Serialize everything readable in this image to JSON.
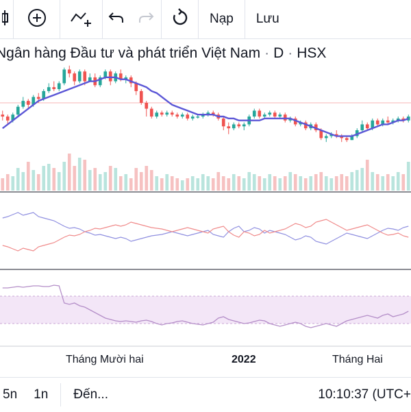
{
  "toolbar": {
    "candle_icon": "candlestick-icon",
    "add_icon": "plus-circle-icon",
    "indicator_icon": "indicator-icon",
    "undo_icon": "undo-icon",
    "redo_icon": "redo-icon",
    "reload_icon": "reload-icon",
    "load_label": "Nạp",
    "save_label": "Lưu"
  },
  "symbol": {
    "name": "Ngân hàng Đầu tư và phát triển Việt Nam",
    "interval": "D",
    "exchange": "HSX"
  },
  "xaxis": {
    "labels": [
      "Tháng Mười hai",
      "2022",
      "Tháng Hai"
    ]
  },
  "bottom_bar": {
    "range_5n": "5n",
    "range_1n": "1n",
    "goto_label": "Đến...",
    "clock": "10:10:37 (UTC+"
  },
  "colors": {
    "up": "#26a69a",
    "down": "#ef5350",
    "ma": "#5b56d6",
    "osc_blue": "#8f8fe0",
    "osc_red": "#f08a8a",
    "rsi": "#b48ec8",
    "rsi_band": "#f3e6f7"
  },
  "chart_data": {
    "type": "candlestick",
    "candles": [
      [
        63,
        62,
        65,
        60
      ],
      [
        62,
        60,
        63,
        58
      ],
      [
        60,
        63,
        64,
        59
      ],
      [
        63,
        67,
        68,
        62
      ],
      [
        67,
        70,
        72,
        66
      ],
      [
        70,
        68,
        71,
        66
      ],
      [
        68,
        72,
        73,
        67
      ],
      [
        72,
        71,
        74,
        69
      ],
      [
        71,
        75,
        76,
        70
      ],
      [
        75,
        77,
        79,
        74
      ],
      [
        77,
        76,
        80,
        75
      ],
      [
        76,
        79,
        80,
        75
      ],
      [
        79,
        86,
        87,
        78
      ],
      [
        86,
        84,
        88,
        82
      ],
      [
        84,
        80,
        85,
        78
      ],
      [
        80,
        85,
        86,
        79
      ],
      [
        85,
        80,
        86,
        78
      ],
      [
        80,
        82,
        84,
        80
      ],
      [
        82,
        78,
        84,
        77
      ],
      [
        78,
        82,
        83,
        77
      ],
      [
        82,
        85,
        86,
        81
      ],
      [
        85,
        80,
        86,
        78
      ],
      [
        80,
        84,
        85,
        79
      ],
      [
        84,
        81,
        86,
        80
      ],
      [
        81,
        82,
        83,
        79
      ],
      [
        82,
        79,
        83,
        77
      ],
      [
        79,
        75,
        80,
        73
      ],
      [
        75,
        69,
        76,
        68
      ],
      [
        69,
        66,
        70,
        62
      ],
      [
        66,
        62,
        67,
        61
      ],
      [
        62,
        64,
        65,
        61
      ],
      [
        64,
        63,
        65,
        62
      ],
      [
        63,
        64,
        65,
        62
      ],
      [
        64,
        63,
        65,
        62
      ],
      [
        63,
        62,
        64,
        61
      ],
      [
        62,
        63,
        64,
        61
      ],
      [
        63,
        61,
        64,
        60
      ],
      [
        61,
        62,
        63,
        60
      ],
      [
        62,
        62,
        63,
        61
      ],
      [
        62,
        63,
        64,
        61
      ],
      [
        63,
        64,
        65,
        62
      ],
      [
        64,
        63,
        65,
        62
      ],
      [
        63,
        61,
        64,
        60
      ],
      [
        61,
        57,
        62,
        55
      ],
      [
        57,
        56,
        59,
        53
      ],
      [
        56,
        58,
        59,
        55
      ],
      [
        58,
        57,
        59,
        56
      ],
      [
        57,
        58,
        59,
        55
      ],
      [
        58,
        62,
        63,
        57
      ],
      [
        62,
        65,
        66,
        61
      ],
      [
        65,
        62,
        66,
        61
      ],
      [
        62,
        63,
        64,
        61
      ],
      [
        63,
        64,
        65,
        62
      ],
      [
        64,
        62,
        65,
        61
      ],
      [
        62,
        63,
        64,
        61
      ],
      [
        63,
        60,
        64,
        59
      ],
      [
        60,
        61,
        62,
        59
      ],
      [
        61,
        58,
        62,
        57
      ],
      [
        58,
        59,
        60,
        57
      ],
      [
        59,
        56,
        60,
        55
      ],
      [
        56,
        58,
        59,
        55
      ],
      [
        58,
        55,
        59,
        54
      ],
      [
        55,
        51,
        56,
        50
      ],
      [
        51,
        52,
        53,
        49
      ],
      [
        52,
        53,
        54,
        51
      ],
      [
        53,
        52,
        55,
        51
      ],
      [
        52,
        51,
        53,
        49
      ],
      [
        51,
        50,
        52,
        49
      ],
      [
        50,
        52,
        53,
        50
      ],
      [
        52,
        55,
        56,
        51
      ],
      [
        55,
        58,
        60,
        54
      ],
      [
        58,
        56,
        59,
        55
      ],
      [
        56,
        60,
        61,
        55
      ],
      [
        60,
        58,
        61,
        57
      ],
      [
        58,
        60,
        61,
        57
      ],
      [
        60,
        59,
        62,
        58
      ],
      [
        59,
        60,
        61,
        58
      ],
      [
        60,
        61,
        62,
        59
      ],
      [
        61,
        60,
        62,
        59
      ],
      [
        60,
        62,
        63,
        59
      ]
    ],
    "ma": [
      56,
      58,
      60,
      62,
      64,
      66,
      68,
      70,
      71,
      72,
      73,
      74,
      75,
      76,
      77,
      78,
      79,
      80,
      80,
      81,
      82,
      82,
      82,
      81,
      81,
      80,
      79,
      78,
      77,
      75,
      74,
      72,
      70,
      68,
      67,
      66,
      65,
      64,
      63,
      63,
      63,
      63,
      62,
      62,
      61,
      61,
      60,
      60,
      60,
      60,
      60,
      61,
      61,
      61,
      61,
      61,
      61,
      60,
      59,
      58,
      57,
      56,
      55,
      54,
      53,
      52,
      52,
      52,
      52,
      53,
      54,
      55,
      56,
      57,
      58,
      58,
      59,
      60,
      60,
      61
    ],
    "volume": [
      30,
      40,
      35,
      55,
      45,
      70,
      50,
      40,
      60,
      65,
      55,
      45,
      70,
      90,
      60,
      80,
      75,
      50,
      55,
      40,
      45,
      60,
      55,
      35,
      40,
      30,
      55,
      45,
      60,
      50,
      35,
      30,
      40,
      35,
      30,
      25,
      30,
      35,
      30,
      40,
      35,
      30,
      45,
      35,
      30,
      40,
      35,
      30,
      45,
      40,
      35,
      30,
      40,
      35,
      30,
      35,
      45,
      40,
      35,
      30,
      35,
      40,
      45,
      35,
      30,
      35,
      40,
      35,
      45,
      50,
      55,
      75,
      45,
      40,
      35,
      40,
      35,
      45,
      40,
      70
    ],
    "osc_blue": [
      70,
      72,
      75,
      78,
      74,
      76,
      78,
      72,
      70,
      68,
      66,
      62,
      58,
      55,
      56,
      54,
      50,
      48,
      45,
      46,
      44,
      42,
      40,
      42,
      40,
      36,
      38,
      40,
      42,
      44,
      45,
      46,
      48,
      50,
      48,
      46,
      44,
      46,
      48,
      50,
      52,
      46,
      44,
      42,
      50,
      55,
      58,
      50,
      52,
      56,
      54,
      48,
      52,
      50,
      48,
      46,
      42,
      38,
      40,
      44,
      42,
      36,
      34,
      32,
      36,
      40,
      44,
      48,
      46,
      44,
      42,
      40,
      44,
      48,
      52,
      55,
      54,
      52,
      56,
      58
    ],
    "osc_red": [
      30,
      28,
      25,
      22,
      26,
      24,
      22,
      28,
      30,
      32,
      34,
      38,
      42,
      45,
      44,
      46,
      50,
      52,
      55,
      54,
      56,
      58,
      60,
      58,
      60,
      64,
      62,
      60,
      58,
      56,
      55,
      54,
      52,
      50,
      52,
      54,
      56,
      54,
      52,
      50,
      48,
      54,
      56,
      58,
      50,
      45,
      42,
      50,
      48,
      44,
      46,
      52,
      48,
      50,
      52,
      54,
      58,
      62,
      60,
      56,
      58,
      64,
      66,
      68,
      64,
      60,
      56,
      52,
      54,
      56,
      58,
      60,
      56,
      52,
      48,
      45,
      46,
      48,
      44,
      42
    ],
    "rsi": [
      82,
      82,
      83,
      84,
      83,
      84,
      85,
      85,
      84,
      84,
      86,
      85,
      60,
      58,
      60,
      56,
      54,
      50,
      46,
      42,
      38,
      36,
      34,
      33,
      34,
      33,
      32,
      34,
      35,
      33,
      30,
      28,
      30,
      31,
      33,
      34,
      32,
      30,
      29,
      28,
      30,
      32,
      38,
      40,
      36,
      34,
      32,
      30,
      31,
      33,
      35,
      34,
      30,
      28,
      26,
      28,
      30,
      32,
      30,
      26,
      24,
      26,
      28,
      30,
      28,
      26,
      30,
      34,
      36,
      38,
      40,
      42,
      40,
      38,
      42,
      44,
      40,
      42,
      44,
      48
    ],
    "rsi_band": [
      30,
      70
    ],
    "x_labels": [
      "Tháng Mười hai",
      "2022",
      "Tháng Hai"
    ],
    "title": "Ngân hàng Đầu tư và phát triển Việt Nam · D · HSX"
  }
}
